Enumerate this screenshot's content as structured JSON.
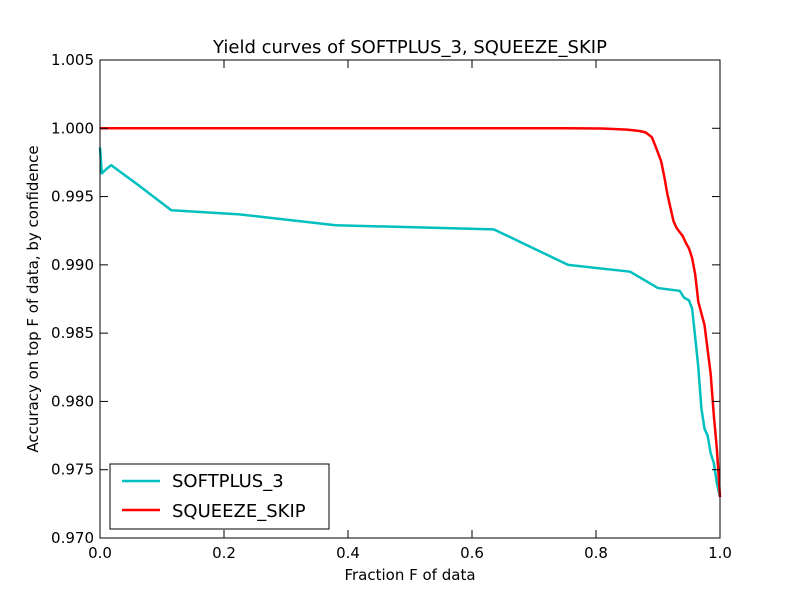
{
  "chart_data": {
    "type": "line",
    "title": "Yield curves of SOFTPLUS_3, SQUEEZE_SKIP",
    "xlabel": "Fraction F of data",
    "ylabel": "Accuracy on top F of data, by confidence",
    "xlim": [
      0.0,
      1.0
    ],
    "ylim": [
      0.97,
      1.005
    ],
    "xticks": [
      0.0,
      0.2,
      0.4,
      0.6,
      0.8,
      1.0
    ],
    "xtick_labels": [
      "0.0",
      "0.2",
      "0.4",
      "0.6",
      "0.8",
      "1.0"
    ],
    "yticks": [
      0.97,
      0.975,
      0.98,
      0.985,
      0.99,
      0.995,
      1.0,
      1.005
    ],
    "ytick_labels": [
      "0.970",
      "0.975",
      "0.980",
      "0.985",
      "0.990",
      "0.995",
      "1.000",
      "1.005"
    ],
    "grid": false,
    "legend_position": "lower-left",
    "series": [
      {
        "name": "SOFTPLUS_3",
        "color": "#00bfbf",
        "x": [
          0.0,
          0.003,
          0.01,
          0.018,
          0.03,
          0.06,
          0.115,
          0.225,
          0.38,
          0.635,
          0.755,
          0.855,
          0.9,
          0.935,
          0.942,
          0.95,
          0.955,
          0.96,
          0.965,
          0.97,
          0.975,
          0.98,
          0.985,
          0.99,
          0.995,
          1.0
        ],
        "y": [
          0.9986,
          0.9967,
          0.997,
          0.9973,
          0.9969,
          0.9959,
          0.994,
          0.9937,
          0.9929,
          0.9926,
          0.99,
          0.9895,
          0.9883,
          0.9881,
          0.9876,
          0.9874,
          0.9868,
          0.9847,
          0.9825,
          0.9795,
          0.978,
          0.9775,
          0.9762,
          0.9755,
          0.974,
          0.973
        ]
      },
      {
        "name": "SQUEEZE_SKIP",
        "color": "#ff0000",
        "x": [
          0.0,
          0.2,
          0.4,
          0.6,
          0.75,
          0.81,
          0.85,
          0.87,
          0.88,
          0.89,
          0.895,
          0.9,
          0.905,
          0.91,
          0.915,
          0.92,
          0.925,
          0.93,
          0.935,
          0.94,
          0.945,
          0.95,
          0.955,
          0.96,
          0.965,
          0.975,
          0.985,
          0.99,
          0.995,
          1.0
        ],
        "y": [
          1.0,
          1.0,
          1.0,
          1.0,
          1.0,
          0.99998,
          0.9999,
          0.9998,
          0.9997,
          0.99935,
          0.9988,
          0.9982,
          0.9976,
          0.9965,
          0.9952,
          0.9942,
          0.9932,
          0.9927,
          0.9924,
          0.9921,
          0.9916,
          0.9912,
          0.9905,
          0.9893,
          0.9873,
          0.9856,
          0.982,
          0.979,
          0.9765,
          0.973
        ]
      }
    ]
  }
}
